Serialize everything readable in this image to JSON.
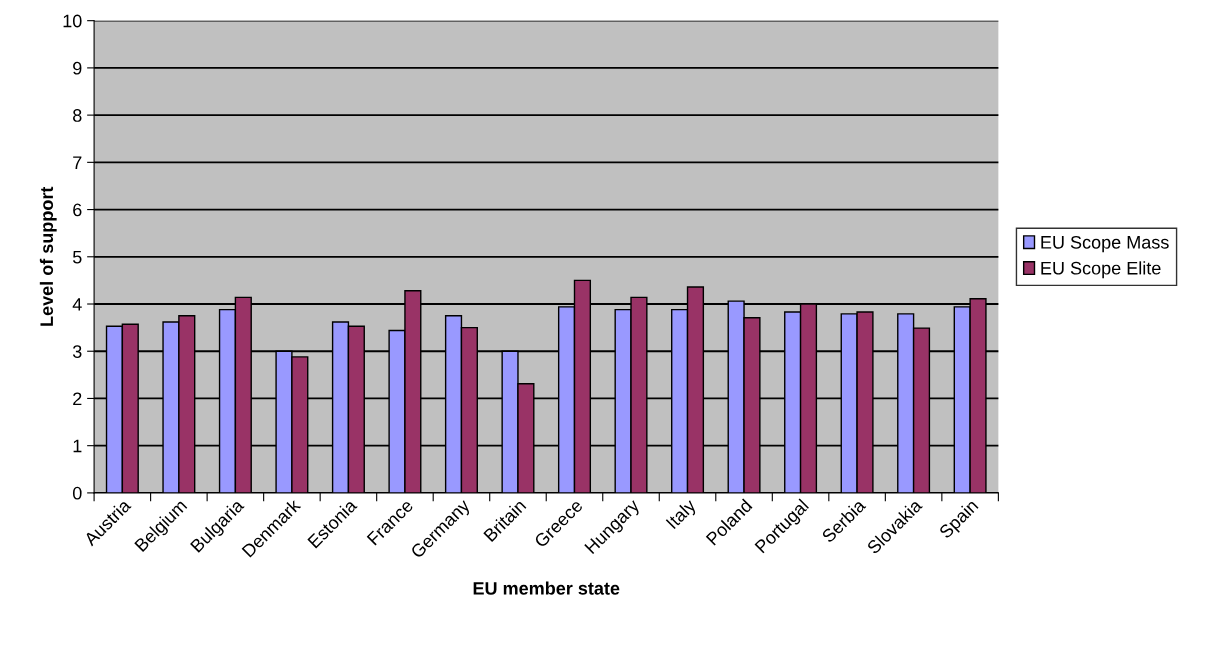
{
  "chart_data": {
    "type": "bar",
    "xlabel": "EU member state",
    "ylabel": "Level of support",
    "categories": [
      "Austria",
      "Belgium",
      "Bulgaria",
      "Denmark",
      "Estonia",
      "France",
      "Germany",
      "Britain",
      "Greece",
      "Hungary",
      "Italy",
      "Poland",
      "Portugal",
      "Serbia",
      "Slovakia",
      "Spain"
    ],
    "series": [
      {
        "name": "EU Scope Mass",
        "color": "#9999ff",
        "values": [
          3.53,
          3.62,
          3.88,
          3.0,
          3.62,
          3.44,
          3.75,
          3.0,
          3.94,
          3.88,
          3.88,
          4.06,
          3.83,
          3.79,
          3.79,
          3.94
        ]
      },
      {
        "name": "EU Scope Elite",
        "color": "#993366",
        "values": [
          3.57,
          3.75,
          4.14,
          2.88,
          3.53,
          4.28,
          3.5,
          2.31,
          4.5,
          4.14,
          4.36,
          3.71,
          4.0,
          3.83,
          3.49,
          4.11
        ]
      }
    ],
    "ylim": [
      0,
      10
    ],
    "yticks": [
      0,
      1,
      2,
      3,
      4,
      5,
      6,
      7,
      8,
      9,
      10
    ],
    "grid": "y",
    "legend": "right"
  }
}
